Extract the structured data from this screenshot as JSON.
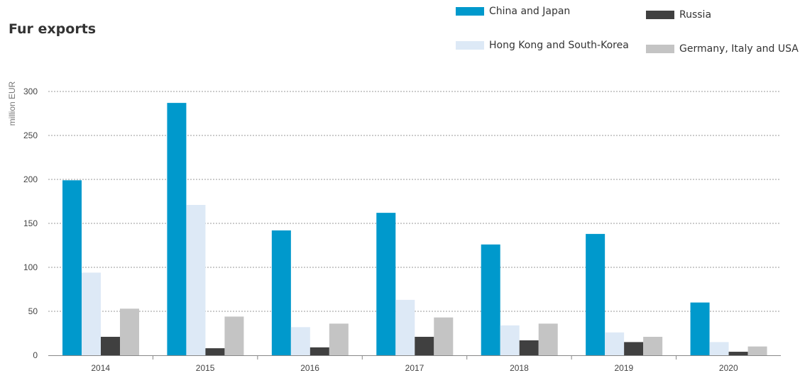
{
  "chart_data": {
    "type": "bar",
    "title": "Fur exports",
    "ylabel": "million EUR",
    "xlabel": "",
    "ylim": [
      0,
      300
    ],
    "yticks": [
      0,
      50,
      100,
      150,
      200,
      250,
      300
    ],
    "grid": true,
    "legend_position": "top-right",
    "categories": [
      "2014",
      "2015",
      "2016",
      "2017",
      "2018",
      "2019",
      "2020"
    ],
    "series": [
      {
        "name": "China and Japan",
        "color": "#0099cc",
        "values": [
          199,
          287,
          142,
          162,
          126,
          138,
          60
        ]
      },
      {
        "name": "Hong Kong and South-Korea",
        "color": "#dde9f6",
        "values": [
          94,
          171,
          32,
          63,
          34,
          26,
          15
        ]
      },
      {
        "name": "Russia",
        "color": "#404040",
        "values": [
          21,
          8,
          9,
          21,
          17,
          15,
          4
        ]
      },
      {
        "name": "Germany, Italy and USA",
        "color": "#c4c4c4",
        "values": [
          53,
          44,
          36,
          43,
          36,
          21,
          10
        ]
      }
    ]
  }
}
